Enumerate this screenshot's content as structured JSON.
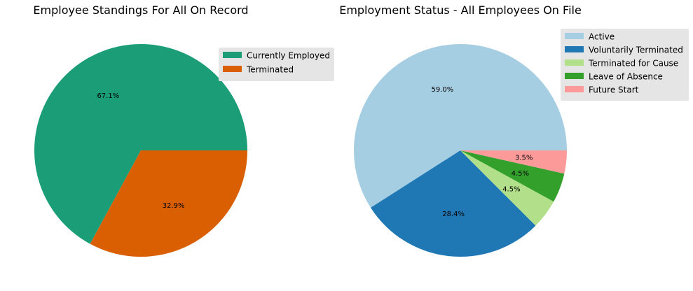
{
  "chart_data": [
    {
      "type": "pie",
      "title": "Employee Standings For All On Record",
      "legend_position": "upper-right",
      "slices": [
        {
          "label": "Currently Employed",
          "value": 67.1,
          "pct_label": "67.1%",
          "color": "#1b9e77"
        },
        {
          "label": "Terminated",
          "value": 32.9,
          "pct_label": "32.9%",
          "color": "#d95f02"
        }
      ]
    },
    {
      "type": "pie",
      "title": "Employment Status - All Employees On File",
      "legend_position": "upper-right",
      "slices": [
        {
          "label": "Active",
          "value": 59.0,
          "pct_label": "59.0%",
          "color": "#a6cee3"
        },
        {
          "label": "Voluntarily Terminated",
          "value": 28.4,
          "pct_label": "28.4%",
          "color": "#1f78b4"
        },
        {
          "label": "Terminated for Cause",
          "value": 4.5,
          "pct_label": "4.5%",
          "color": "#b2df8a"
        },
        {
          "label": "Leave of Absence",
          "value": 4.5,
          "pct_label": "4.5%",
          "color": "#33a02c"
        },
        {
          "label": "Future Start",
          "value": 3.5,
          "pct_label": "3.5%",
          "color": "#fb9a99"
        }
      ]
    }
  ]
}
